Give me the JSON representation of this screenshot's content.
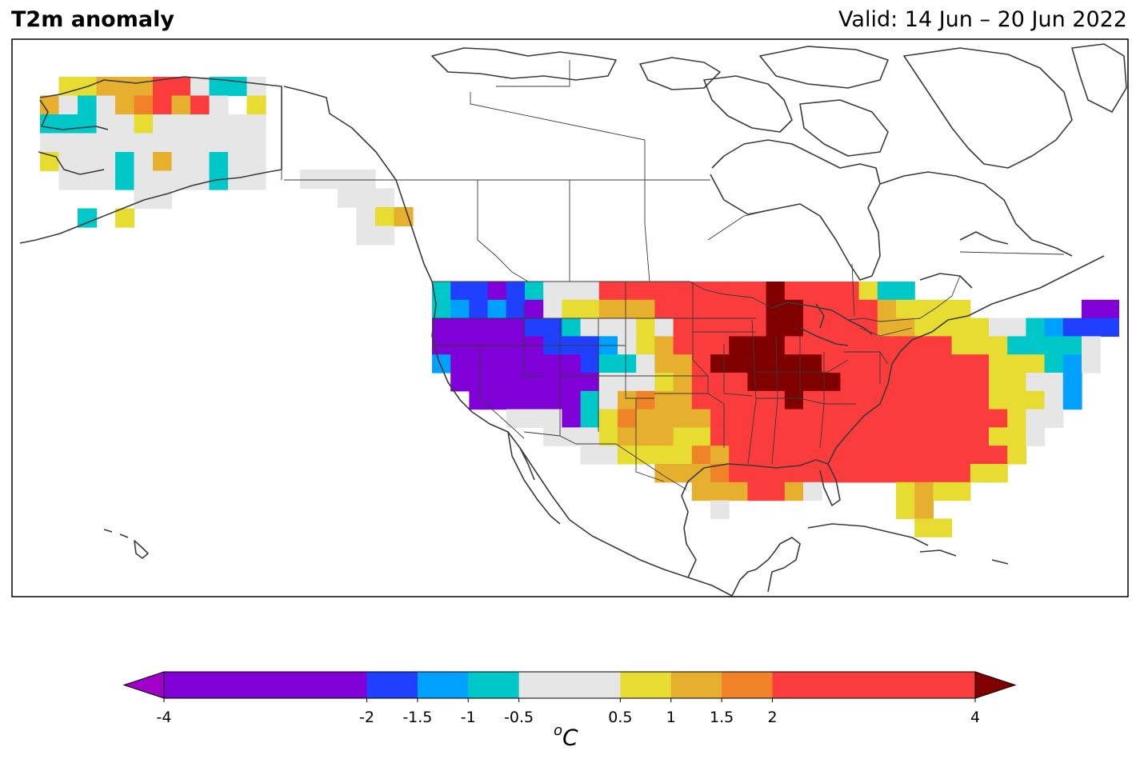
{
  "title": "T2m anomaly",
  "valid": "Valid: 14 Jun – 20 Jun 2022",
  "colorbar": {
    "unit_sup": "o",
    "unit_main": "C",
    "ticks": [
      "-4",
      "-2",
      "-1.5",
      "-1",
      "-0.5",
      "0.5",
      "1",
      "1.5",
      "2",
      "4"
    ],
    "tick_values": [
      -4,
      -2,
      -1.5,
      -1,
      -0.5,
      0.5,
      1,
      1.5,
      2,
      4
    ],
    "colors": [
      "#8000d8",
      "#2040ff",
      "#00a0ff",
      "#00c8c8",
      "#e6e6e6",
      "#e6dc32",
      "#e6af2d",
      "#f08228",
      "#fa3c3c"
    ],
    "under_color": "#a000c8",
    "over_color": "#800000",
    "extend": "both"
  },
  "map": {
    "region": "North America",
    "field": "2m temperature anomaly",
    "colors_meaning": {
      "dark-purple": "< -2",
      "blue": "-2 to -1.5",
      "light-blue": "-1.5 to -1",
      "cyan": "-1 to -0.5",
      "gray": "-0.5 to 0.5",
      "yellow": "0.5 to 1",
      "gold": "1 to 1.5",
      "orange": "1.5 to 2",
      "red": "2 to 4",
      "dark-red": "> 4"
    }
  }
}
